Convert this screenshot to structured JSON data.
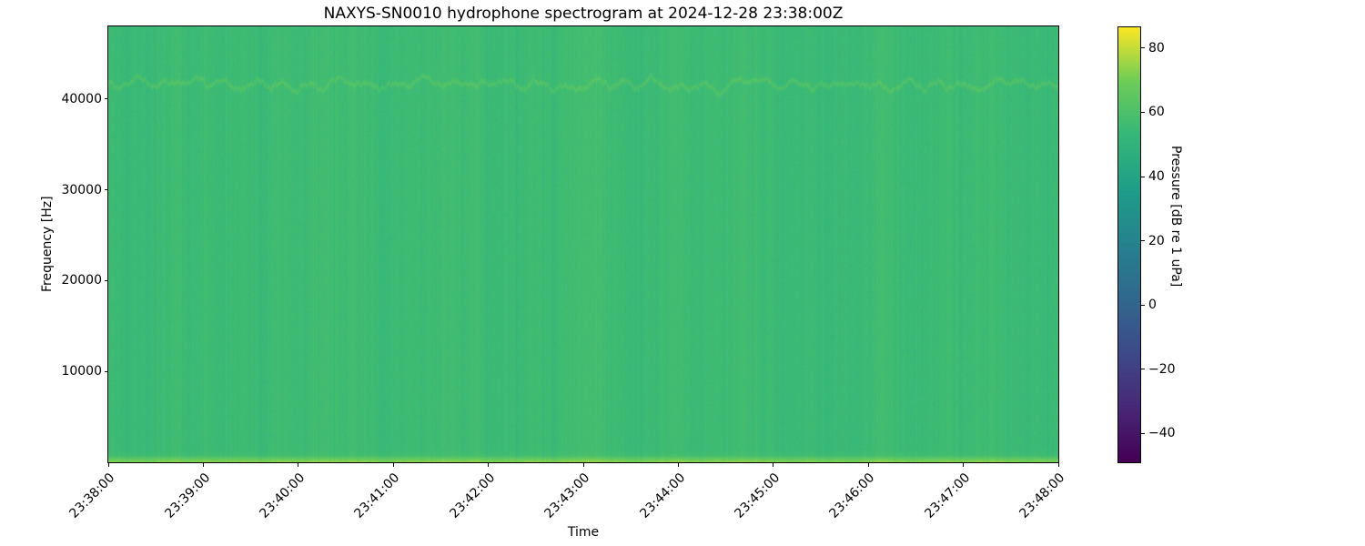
{
  "figure": {
    "title": "NAXYS-SN0010 hydrophone spectrogram at 2024-12-28 23:38:00Z"
  },
  "axes": {
    "xlabel": "Time",
    "ylabel": "Frequency [Hz]"
  },
  "colorbar": {
    "label": "Pressure [dB re 1 uPa]",
    "tick_labels": [
      "80",
      "60",
      "40",
      "20",
      "0",
      "−20",
      "−40"
    ],
    "tick_values": [
      80,
      60,
      40,
      20,
      0,
      -20,
      -40
    ],
    "min_db": -49,
    "max_db": 86.5,
    "colormap": "viridis"
  },
  "chart_data": {
    "type": "heatmap",
    "variant": "spectrogram",
    "title": "NAXYS-SN0010 hydrophone spectrogram at 2024-12-28 23:38:00Z",
    "xlabel": "Time",
    "ylabel": "Frequency [Hz]",
    "x_tick_labels": [
      "23:38:00",
      "23:39:00",
      "23:40:00",
      "23:41:00",
      "23:42:00",
      "23:43:00",
      "23:44:00",
      "23:45:00",
      "23:46:00",
      "23:47:00",
      "23:48:00"
    ],
    "x_range": [
      "23:38:00Z",
      "23:48:00Z"
    ],
    "duration_s": 600,
    "y_tick_values": [
      10000,
      20000,
      30000,
      40000
    ],
    "y_tick_labels": [
      "10000",
      "20000",
      "30000",
      "40000"
    ],
    "y_range_hz": [
      0,
      48000
    ],
    "z_label": "Pressure [dB re 1 uPa]",
    "z_range_db": [
      -49,
      86.5
    ],
    "colormap": "viridis",
    "legend": "none",
    "grid": false,
    "content": {
      "background_level_db": 55,
      "pixel_noise_sigma_db": 0.7,
      "column_noise_sigma_db": 0.5,
      "low_frequency_band": {
        "peak_db": 72,
        "sigma_hz": 550,
        "description": "bright yellow-green elevated band below ~1 kHz along the bottom edge"
      },
      "tonal": {
        "center_hz": 41600,
        "peak_db": 61,
        "bandwidth_hz": 260,
        "wobble_hz": 280,
        "wobble_period_s": 18,
        "description": "faint wavy narrowband tone near 41.6 kHz across the whole record"
      },
      "texture": "otherwise uniform mid-level broadband noise (~55 dB, viridis green) with subtle second-scale vertical striping",
      "seed": 1337
    }
  }
}
